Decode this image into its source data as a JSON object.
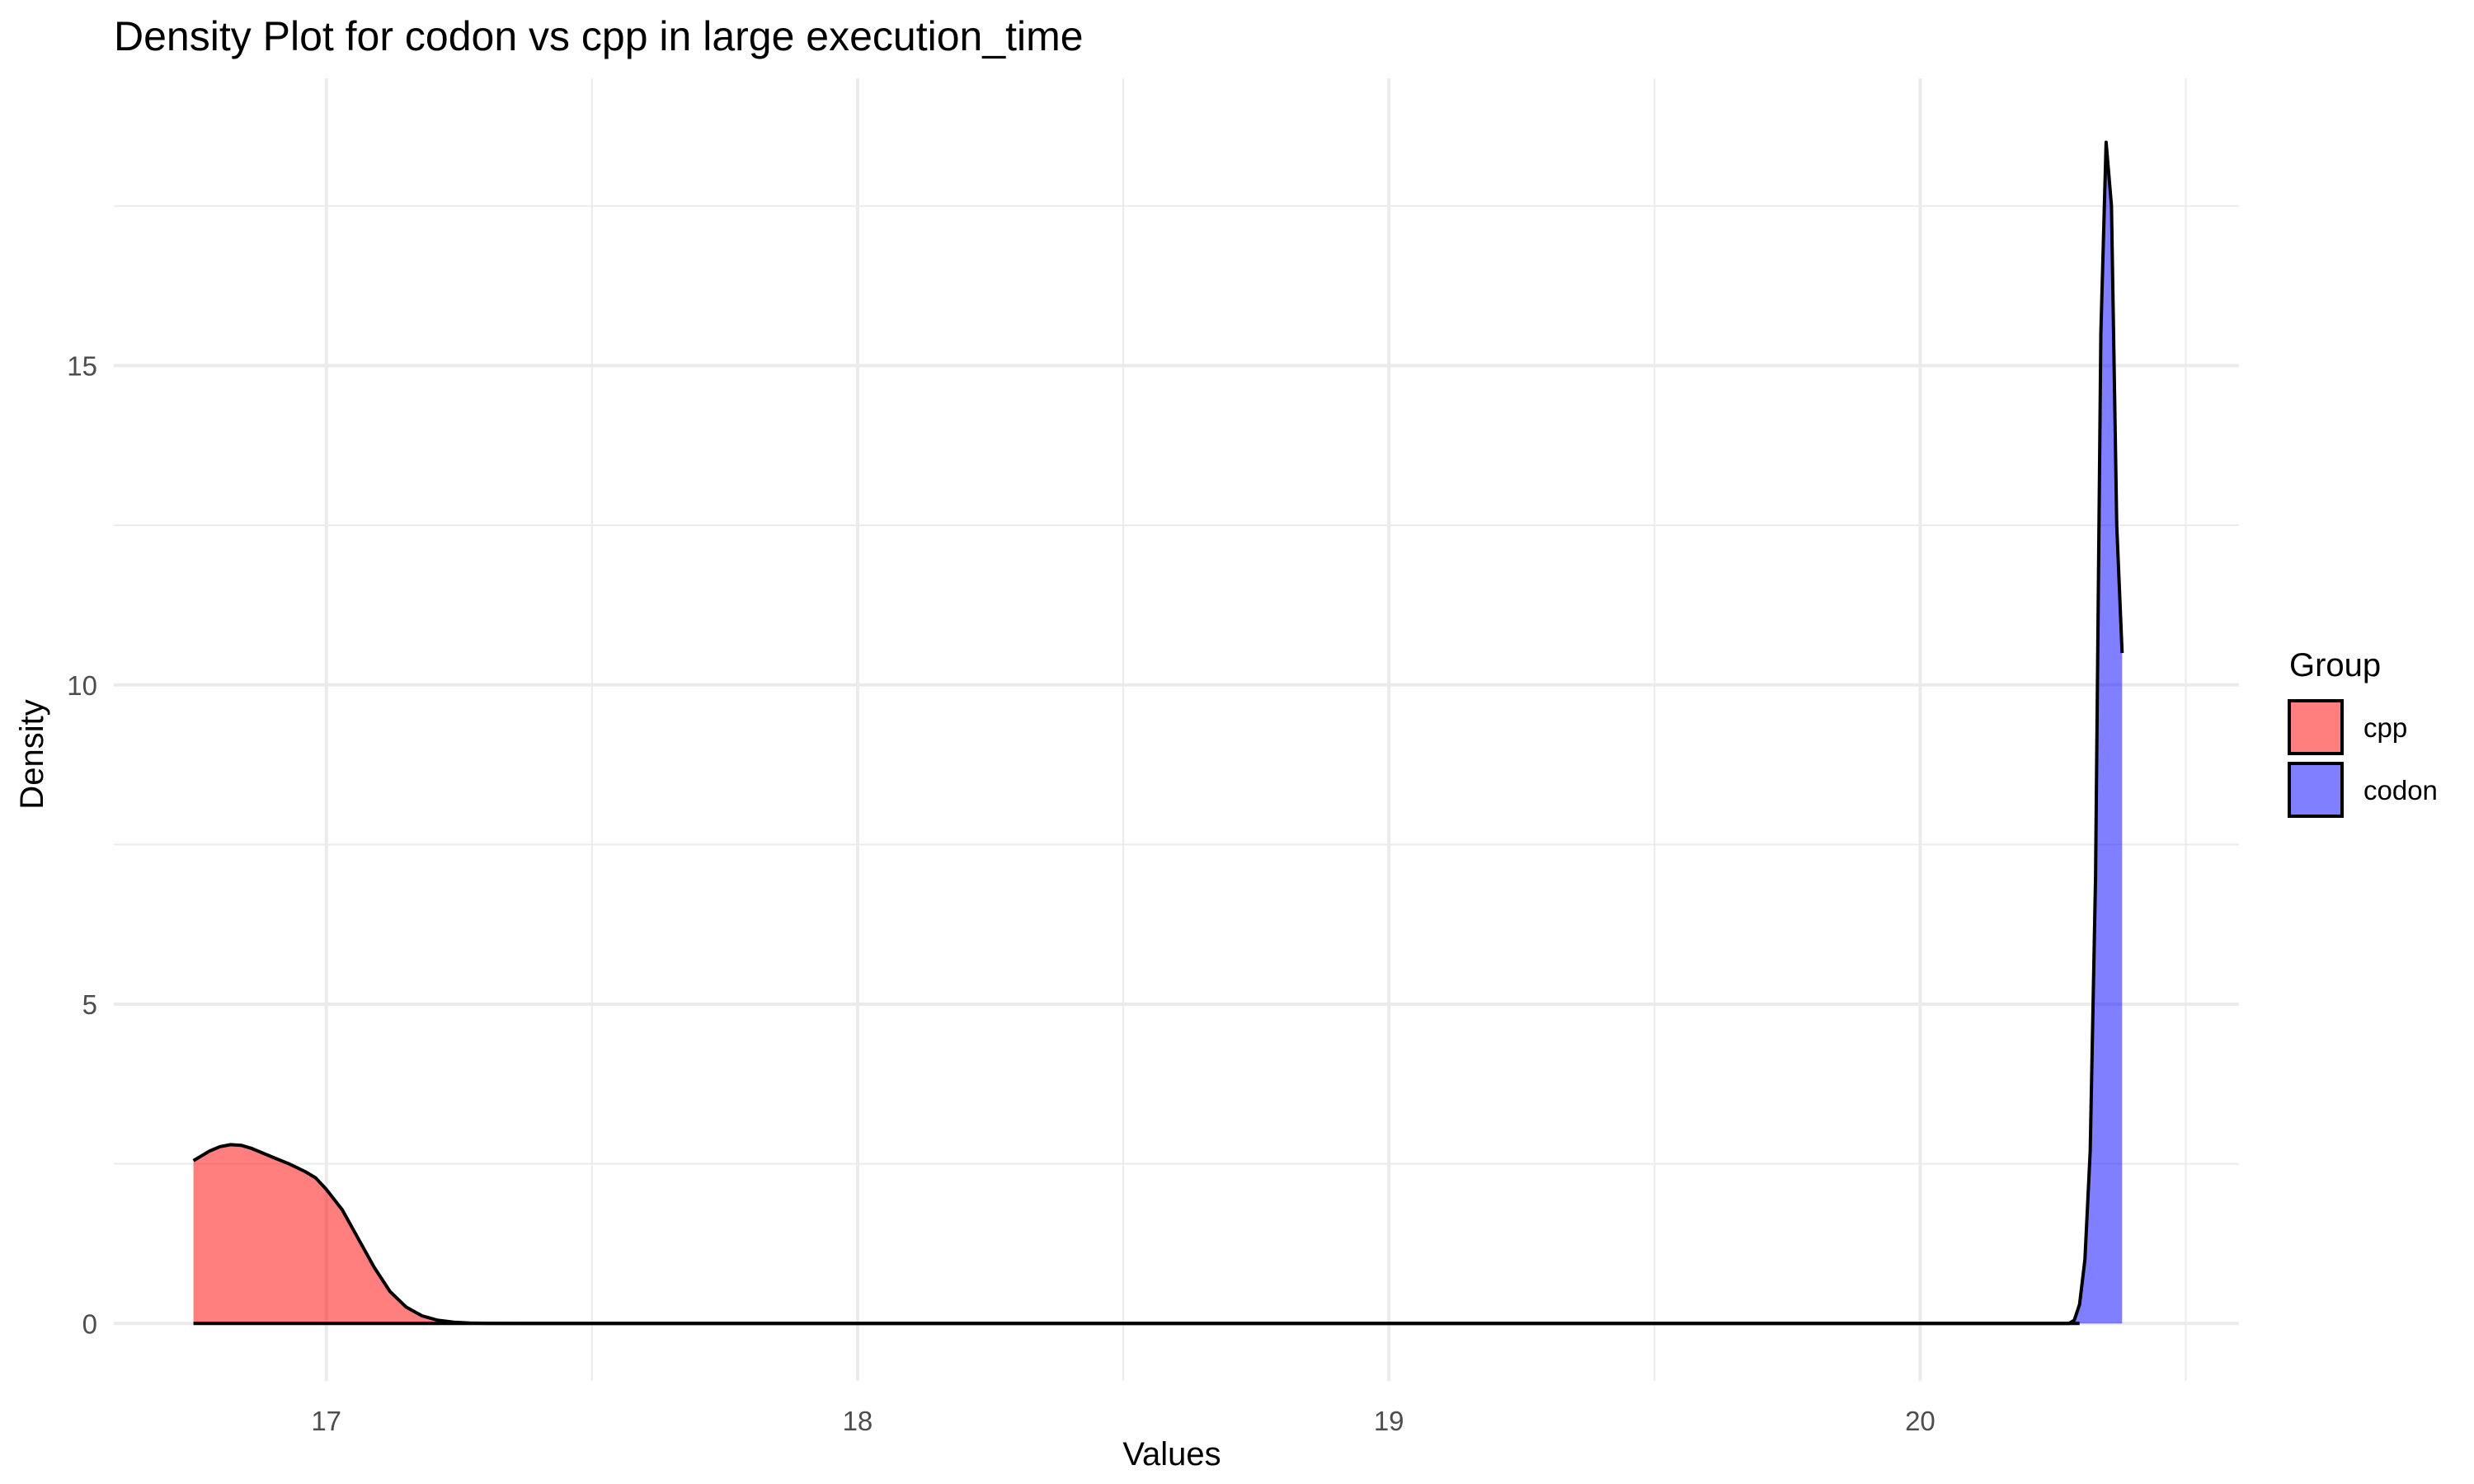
{
  "chart_data": {
    "type": "area",
    "title": "Density Plot for codon vs cpp in large execution_time",
    "xlabel": "Values",
    "ylabel": "Density",
    "xlim": [
      16.6,
      20.6
    ],
    "ylim": [
      -0.9,
      19.5
    ],
    "x_ticks": [
      17,
      18,
      19,
      20
    ],
    "y_ticks": [
      0,
      5,
      10,
      15
    ],
    "x_minor": [
      17.5,
      18.5,
      19.5,
      20.5
    ],
    "y_minor": [
      2.5,
      7.5,
      12.5,
      17.5
    ],
    "grid": true,
    "legend": {
      "title": "Group",
      "position": "right"
    },
    "series": [
      {
        "name": "cpp",
        "color": "#ff0000",
        "opacity": 0.5,
        "x": [
          16.75,
          16.78,
          16.8,
          16.82,
          16.84,
          16.86,
          16.88,
          16.9,
          16.93,
          16.96,
          16.98,
          17.0,
          17.03,
          17.06,
          17.09,
          17.12,
          17.15,
          17.18,
          17.21,
          17.24,
          17.27,
          17.3,
          17.4,
          17.6,
          18.0,
          19.0,
          20.0,
          20.3
        ],
        "y": [
          2.55,
          2.7,
          2.77,
          2.8,
          2.79,
          2.74,
          2.67,
          2.6,
          2.5,
          2.38,
          2.28,
          2.1,
          1.78,
          1.33,
          0.88,
          0.5,
          0.26,
          0.12,
          0.05,
          0.02,
          0.008,
          0.003,
          0.0,
          0.0,
          0.0,
          0.0,
          0.0,
          0.0
        ]
      },
      {
        "name": "codon",
        "color": "#0000ff",
        "opacity": 0.5,
        "x": [
          16.75,
          17.0,
          18.0,
          19.0,
          20.0,
          20.28,
          20.29,
          20.3,
          20.31,
          20.32,
          20.33,
          20.34,
          20.35,
          20.36,
          20.37,
          20.38
        ],
        "y": [
          0.0,
          0.0,
          0.0,
          0.0,
          0.0,
          0.0,
          0.05,
          0.3,
          1.0,
          2.7,
          7.0,
          15.5,
          18.5,
          17.5,
          12.5,
          10.5
        ]
      }
    ]
  }
}
